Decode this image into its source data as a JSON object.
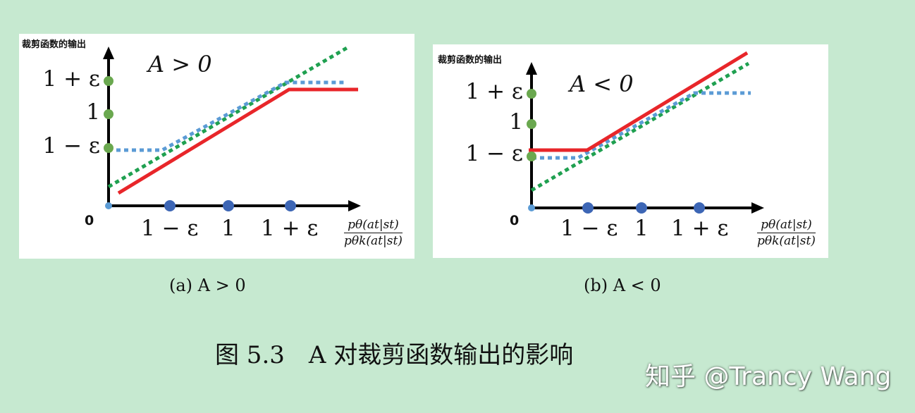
{
  "panels": [
    {
      "y_axis_label": "裁剪函数的输出",
      "condition": "A > 0",
      "y_ticks": [
        "1 + ε",
        "1",
        "1 − ε"
      ],
      "x_ticks": [
        "1 − ε",
        "1",
        "1 + ε"
      ],
      "origin": "0",
      "x_axis_numerator": "pθ(at|st)",
      "x_axis_denominator": "pθk(at|st)",
      "subcaption": "(a) A > 0"
    },
    {
      "y_axis_label": "裁剪函数的输出",
      "condition": "A < 0",
      "y_ticks": [
        "1 + ε",
        "1",
        "1 − ε"
      ],
      "x_ticks": [
        "1 − ε",
        "1",
        "1 + ε"
      ],
      "origin": "0",
      "x_axis_numerator": "pθ(at|st)",
      "x_axis_denominator": "pθk(at|st)",
      "subcaption": "(b) A < 0"
    }
  ],
  "caption": "图 5.3　A 对裁剪函数输出的影响",
  "watermark": "知乎 @Trancy Wang",
  "colors": {
    "background": "#c6e9d0",
    "red_line": "#e8262a",
    "green_dotted": "#1fa050",
    "blue_dotted": "#5b9bd5",
    "y_dots": "#6aa84f",
    "x_dots": "#3d66b5"
  }
}
